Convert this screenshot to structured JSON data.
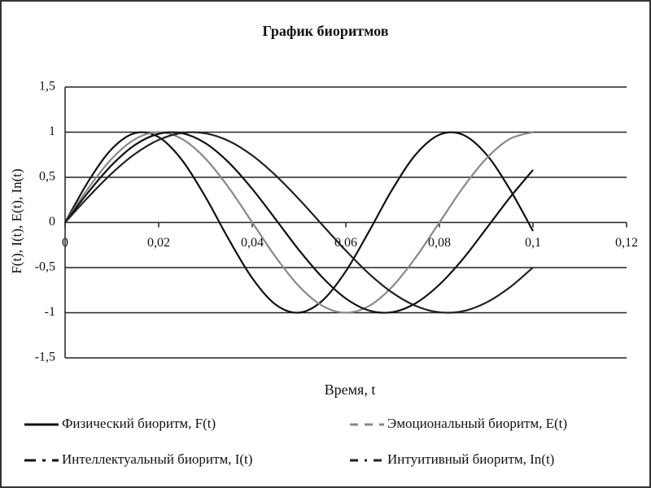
{
  "chart_data": {
    "type": "line",
    "title": "График  биоритмов",
    "x_label": "Время, t",
    "y_label": "F(t), I(t), E(t), In(t)",
    "x": [
      0,
      0.005,
      0.01,
      0.015,
      0.02,
      0.025,
      0.03,
      0.035,
      0.04,
      0.045,
      0.05,
      0.055,
      0.06,
      0.065,
      0.07,
      0.075,
      0.08,
      0.085,
      0.09,
      0.095,
      0.1
    ],
    "series": [
      {
        "name": "Физический биоритм, F(t)",
        "color": "#111111",
        "dash": "none",
        "values": [
          0,
          0.458,
          0.815,
          0.99,
          0.945,
          0.69,
          0.282,
          -0.189,
          -0.617,
          -0.91,
          -0.999,
          -0.866,
          -0.54,
          -0.095,
          0.372,
          0.756,
          0.972,
          0.972,
          0.756,
          0.372,
          -0.095
        ]
      },
      {
        "name": "Эмоциональный биоритм, E(t)",
        "color": "#888888",
        "dash": "10 8",
        "values": [
          0,
          0.383,
          0.707,
          0.924,
          1,
          0.924,
          0.707,
          0.383,
          0,
          -0.383,
          -0.707,
          -0.924,
          -1,
          -0.924,
          -0.707,
          -0.383,
          0,
          0.383,
          0.707,
          0.924,
          1
        ]
      },
      {
        "name": "Интеллектуальный биоритм, I(t)",
        "color": "#111111",
        "dash": "14 8 4 8",
        "values": [
          0,
          0.338,
          0.637,
          0.861,
          0.982,
          0.988,
          0.878,
          0.663,
          0.371,
          0.035,
          -0.307,
          -0.609,
          -0.842,
          -0.976,
          -0.993,
          -0.892,
          -0.688,
          -0.406,
          -0.069,
          0.272,
          0.582
        ]
      },
      {
        "name": "Интуитивный биоритм, In(t)",
        "color": "#222222",
        "dash": "10 8 3 8",
        "values": [
          0,
          0.284,
          0.545,
          0.761,
          0.914,
          0.992,
          0.987,
          0.902,
          0.742,
          0.521,
          0.257,
          -0.029,
          -0.312,
          -0.57,
          -0.78,
          -0.926,
          -0.995,
          -0.983,
          -0.888,
          -0.721,
          -0.498
        ]
      }
    ],
    "xlim": [
      0,
      0.12
    ],
    "xticks": [
      0,
      {
        "value": 0.02,
        "label": "0,02"
      },
      {
        "value": 0.04,
        "label": "0,04"
      },
      {
        "value": 0.06,
        "label": "0,06"
      },
      {
        "value": 0.08,
        "label": "0,08"
      },
      {
        "value": 0.1,
        "label": "0,1"
      },
      {
        "value": 0.12,
        "label": "0,12"
      }
    ],
    "ylim": [
      -1.5,
      1.5
    ],
    "yticks": [
      {
        "value": -1.5,
        "label": "-1,5"
      },
      -1,
      {
        "value": -0.5,
        "label": "-0,5"
      },
      0,
      {
        "value": 0.5,
        "label": "0,5"
      },
      1,
      {
        "value": 1.5,
        "label": "1,5"
      }
    ],
    "grid": true
  }
}
